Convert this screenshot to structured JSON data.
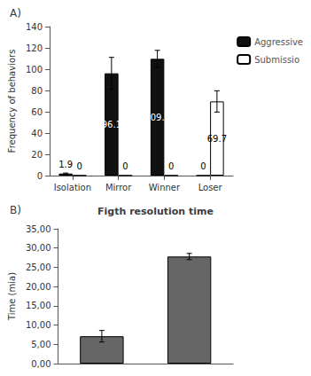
{
  "chart_data": [
    {
      "type": "bar",
      "annotations": [
        "A)"
      ],
      "y_label": "Frequency of behaviors",
      "categories": [
        "Isolation",
        "Mirror",
        "Winner",
        "Loser"
      ],
      "series": [
        {
          "name": "Aggressive",
          "color": "#111111",
          "values": [
            1.9,
            96.1,
            109.7,
            0
          ],
          "errors": [
            0.5,
            15.0,
            8.0,
            0
          ]
        },
        {
          "name": "Submissio",
          "color": "#ffffff",
          "values": [
            0,
            0,
            0,
            69.7
          ],
          "errors": [
            0,
            0,
            0,
            10.0
          ]
        }
      ],
      "ylim": [
        0,
        140
      ],
      "yticks": [
        0,
        20,
        40,
        60,
        80,
        100,
        120,
        140
      ],
      "data_labels": true,
      "legend": "right",
      "grid": false
    },
    {
      "type": "bar",
      "title": "Figth resolution time",
      "annotations": [
        "B)"
      ],
      "y_label": "Time (mia)",
      "categories": [
        null,
        null
      ],
      "values": [
        7.1,
        27.8
      ],
      "errors": [
        1.5,
        0.8
      ],
      "color": "#666666",
      "ylim": [
        0,
        35
      ],
      "yticks": [
        {
          "value": 0.0,
          "label": "0,00"
        },
        {
          "value": 5.0,
          "label": "5,00"
        },
        {
          "value": 10.0,
          "label": "10,00"
        },
        {
          "value": 15.0,
          "label": "15,00"
        },
        {
          "value": 20.0,
          "label": "20,00"
        },
        {
          "value": 25.0,
          "label": "25,00"
        },
        {
          "value": 30.0,
          "label": "30,00"
        },
        {
          "value": 35.0,
          "label": "35,00"
        }
      ],
      "tick_labels": "y",
      "grid": false
    }
  ]
}
